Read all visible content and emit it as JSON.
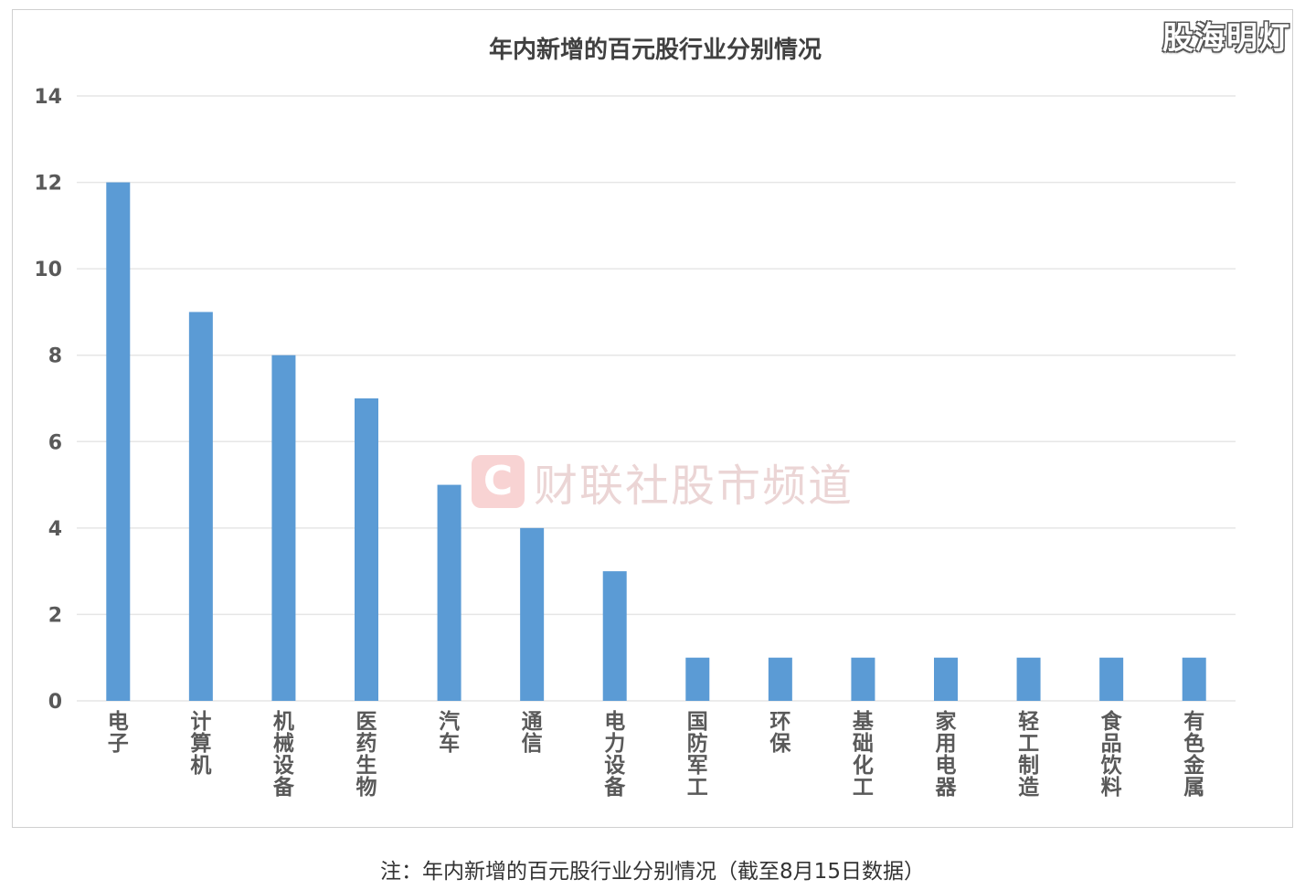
{
  "brand": "股海明灯",
  "watermark": {
    "logo_letter": "C",
    "text": "财联社股市频道"
  },
  "caption": "注：年内新增的百元股行业分别情况（截至8月15日数据）",
  "colors": {
    "bar": "#5b9bd5",
    "grid": "#e6e6e6",
    "axis_text": "#595959",
    "title": "#404040"
  },
  "chart_data": {
    "type": "bar",
    "title": "年内新增的百元股行业分别情况",
    "xlabel": "",
    "ylabel": "",
    "categories": [
      "电子",
      "计算机",
      "机械设备",
      "医药生物",
      "汽车",
      "通信",
      "电力设备",
      "国防军工",
      "环保",
      "基础化工",
      "家用电器",
      "轻工制造",
      "食品饮料",
      "有色金属"
    ],
    "values": [
      12,
      9,
      8,
      7,
      5,
      4,
      3,
      1,
      1,
      1,
      1,
      1,
      1,
      1
    ],
    "ylim": [
      0,
      14
    ],
    "yticks": [
      0,
      2,
      4,
      6,
      8,
      10,
      12,
      14
    ],
    "grid": true,
    "legend": "none"
  }
}
